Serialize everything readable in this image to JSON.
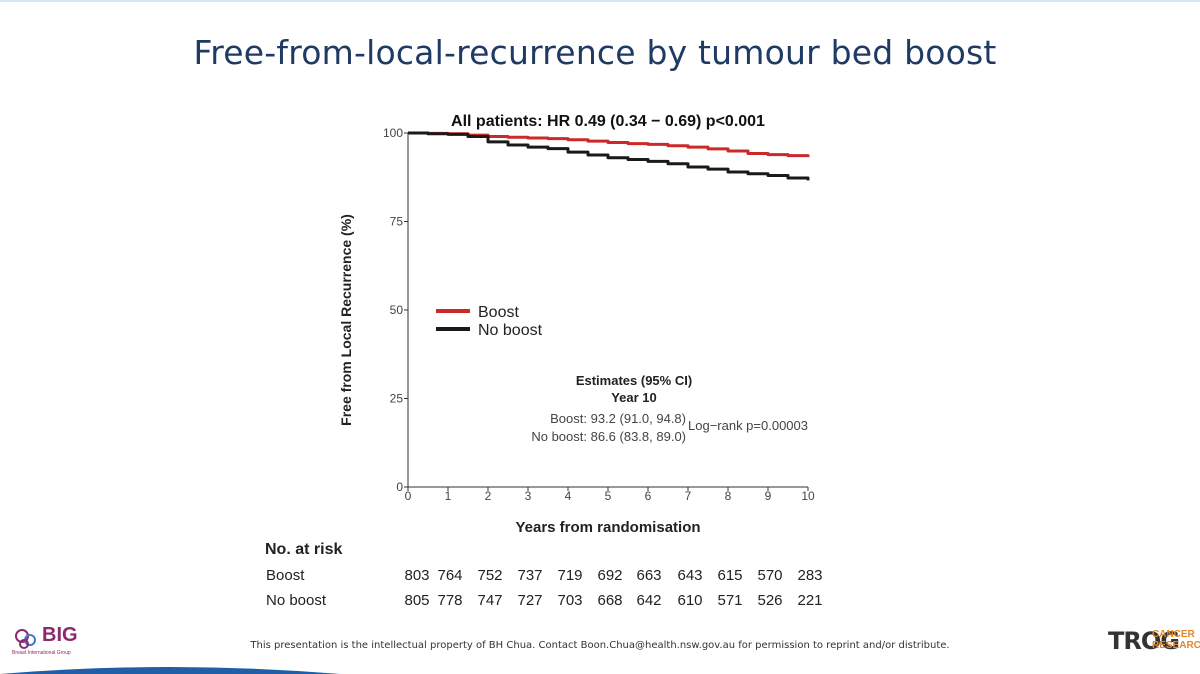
{
  "slide": {
    "title": "Free-from-local-recurrence by tumour bed boost",
    "footer": "This presentation is the intellectual property of BH Chua. Contact Boon.Chua@health.nsw.gov.au for permission to reprint and/or distribute."
  },
  "logos": {
    "big_text": "BIG",
    "big_sub": "Breast International Group",
    "trog_text": "TROG",
    "cancer_line1": "CANCER",
    "cancer_line2": "RESEARCH"
  },
  "colors": {
    "boost": "#cc2a2a",
    "no_boost": "#1a1a1a",
    "title": "#1f3a63"
  },
  "chart_data": {
    "type": "line",
    "title": "All patients: HR 0.49 (0.34 − 0.69) p<0.001",
    "xlabel": "Years from randomisation",
    "ylabel": "Free from Local Recurrence (%)",
    "xlim": [
      0,
      10
    ],
    "ylim": [
      0,
      100
    ],
    "x_ticks": [
      0,
      1,
      2,
      3,
      4,
      5,
      6,
      7,
      8,
      9,
      10
    ],
    "y_ticks": [
      0,
      25,
      50,
      75,
      100
    ],
    "legend": "center-left",
    "series": [
      {
        "name": "Boost",
        "x": [
          0,
          0.5,
          1,
          1.5,
          2,
          2.5,
          3,
          3.5,
          4,
          4.5,
          5,
          5.5,
          6,
          6.5,
          7,
          7.5,
          8,
          8.5,
          9,
          9.5,
          10
        ],
        "y": [
          100,
          99.9,
          99.8,
          99.4,
          99.0,
          98.8,
          98.6,
          98.4,
          98.1,
          97.7,
          97.3,
          97.0,
          96.8,
          96.4,
          96.0,
          95.5,
          94.9,
          94.2,
          93.9,
          93.6,
          93.2
        ]
      },
      {
        "name": "No boost",
        "x": [
          0,
          0.5,
          1,
          1.5,
          2,
          2.5,
          3,
          3.5,
          4,
          4.5,
          5,
          5.5,
          6,
          6.5,
          7,
          7.5,
          8,
          8.5,
          9,
          9.5,
          10
        ],
        "y": [
          100,
          99.8,
          99.6,
          99.0,
          97.5,
          96.6,
          96.0,
          95.6,
          94.6,
          93.8,
          93.0,
          92.5,
          92.0,
          91.3,
          90.4,
          89.8,
          89.0,
          88.5,
          88.0,
          87.3,
          86.6
        ]
      }
    ],
    "estimates": {
      "heading": "Estimates (95% CI)",
      "subheading": "Year 10",
      "boost": "Boost: 93.2 (91.0, 94.8)",
      "no_boost": "No boost: 86.6 (83.8, 89.0)",
      "logrank": "Log−rank p=0.00003"
    }
  },
  "risk_table": {
    "heading": "No. at risk",
    "rows": [
      {
        "label": "Boost",
        "values": [
          "803",
          "764",
          "752",
          "737",
          "719",
          "692",
          "663",
          "643",
          "615",
          "570",
          "283"
        ]
      },
      {
        "label": "No boost",
        "values": [
          "805",
          "778",
          "747",
          "727",
          "703",
          "668",
          "642",
          "610",
          "571",
          "526",
          "221"
        ]
      }
    ]
  }
}
